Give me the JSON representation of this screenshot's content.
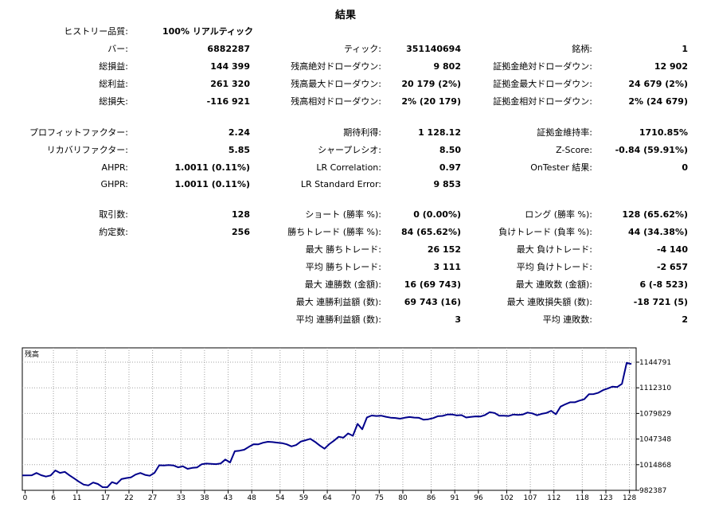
{
  "title": "結果",
  "history_quality": {
    "label": "ヒストリー品質:",
    "value": "100% リアルティック"
  },
  "rows": [
    {
      "y": 55,
      "c1": [
        "バー:",
        "6882287"
      ],
      "c2": [
        "ティック:",
        "351140694"
      ],
      "c3": [
        "銘柄:",
        "1"
      ]
    },
    {
      "y": 77,
      "c1": [
        "総損益:",
        "144 399"
      ],
      "c2": [
        "残高絶対ドローダウン:",
        "9 802"
      ],
      "c3": [
        "証拠金絶対ドローダウン:",
        "12 902"
      ]
    },
    {
      "y": 99,
      "c1": [
        "総利益:",
        "261 320"
      ],
      "c2": [
        "残高最大ドローダウン:",
        "20 179 (2%)"
      ],
      "c3": [
        "証拠金最大ドローダウン:",
        "24 679 (2%)"
      ]
    },
    {
      "y": 121,
      "c1": [
        "総損失:",
        "-116 921"
      ],
      "c2": [
        "残高相対ドローダウン:",
        "2% (20 179)"
      ],
      "c3": [
        "証拠金相対ドローダウン:",
        "2% (24 679)"
      ]
    },
    {
      "y": 160,
      "c1": [
        "プロフィットファクター:",
        "2.24"
      ],
      "c2": [
        "期待利得:",
        "1 128.12"
      ],
      "c3": [
        "証拠金維持率:",
        "1710.85%"
      ]
    },
    {
      "y": 182,
      "c1": [
        "リカバリファクター:",
        "5.85"
      ],
      "c2": [
        "シャープレシオ:",
        "8.50"
      ],
      "c3": [
        "Z-Score:",
        "-0.84 (59.91%)"
      ]
    },
    {
      "y": 204,
      "c1": [
        "AHPR:",
        "1.0011 (0.11%)"
      ],
      "c2": [
        "LR Correlation:",
        "0.97"
      ],
      "c3": [
        "OnTester 結果:",
        "0"
      ]
    },
    {
      "y": 225,
      "c1": [
        "GHPR:",
        "1.0011 (0.11%)"
      ],
      "c2": [
        "LR Standard Error:",
        "9 853"
      ],
      "c3": null
    },
    {
      "y": 263,
      "c1": [
        "取引数:",
        "128"
      ],
      "c2": [
        "ショート (勝率 %):",
        "0 (0.00%)"
      ],
      "c3": [
        "ロング (勝率 %):",
        "128 (65.62%)"
      ]
    },
    {
      "y": 285,
      "c1": [
        "約定数:",
        "256"
      ],
      "c2": [
        "勝ちトレード (勝率 %):",
        "84 (65.62%)"
      ],
      "c3": [
        "負けトレード (負率 %):",
        "44 (34.38%)"
      ]
    },
    {
      "y": 307,
      "c1": null,
      "c2": [
        "最大 勝ちトレード:",
        "26 152"
      ],
      "c3": [
        "最大 負けトレード:",
        "-4 140"
      ]
    },
    {
      "y": 329,
      "c1": null,
      "c2": [
        "平均 勝ちトレード:",
        "3 111"
      ],
      "c3": [
        "平均 負けトレード:",
        "-2 657"
      ]
    },
    {
      "y": 351,
      "c1": null,
      "c2": [
        "最大 連勝数 (金額):",
        "16 (69 743)"
      ],
      "c3": [
        "最大 連敗数 (金額):",
        "6 (-8 523)"
      ]
    },
    {
      "y": 373,
      "c1": null,
      "c2": [
        "最大 連勝利益額 (数):",
        "69 743 (16)"
      ],
      "c3": [
        "最大 連敗損失額 (数):",
        "-18 721 (5)"
      ]
    },
    {
      "y": 395,
      "c1": null,
      "c2": [
        "平均 連勝利益額 (数):",
        "3"
      ],
      "c3": [
        "平均 連敗数:",
        "2"
      ]
    }
  ],
  "chart_data": {
    "type": "line",
    "title": "残高",
    "x_ticks": [
      0,
      6,
      11,
      17,
      22,
      27,
      33,
      38,
      43,
      48,
      54,
      59,
      64,
      70,
      75,
      80,
      86,
      91,
      96,
      102,
      107,
      112,
      118,
      123,
      128
    ],
    "y_ticks": [
      982387,
      1014868,
      1047348,
      1079829,
      1112310,
      1144791
    ],
    "ylim": [
      982387,
      1144791
    ],
    "xlim": [
      0,
      130
    ],
    "grid": true,
    "line_color": "#00008b",
    "series": [
      {
        "x": [
          0,
          2,
          3,
          4,
          5,
          6,
          7,
          8,
          9,
          10,
          11,
          12,
          13,
          14,
          15,
          16,
          17,
          18,
          19,
          20,
          21,
          22,
          23,
          24,
          25,
          26,
          27,
          28,
          29,
          30,
          31,
          32,
          33,
          34,
          35,
          36,
          37,
          38,
          39,
          40,
          41,
          42,
          43,
          44,
          45,
          46,
          47,
          48,
          49,
          50,
          51,
          52,
          53,
          54,
          55,
          56,
          57,
          58,
          59,
          60,
          61,
          62,
          63,
          64,
          65,
          66,
          67,
          68,
          69,
          70,
          71,
          72,
          73,
          74,
          75,
          76,
          77,
          78,
          79,
          80,
          81,
          82,
          83,
          84,
          85,
          86,
          87,
          88,
          89,
          90,
          91,
          92,
          93,
          94,
          95,
          96,
          97,
          98,
          99,
          100,
          101,
          102,
          103,
          104,
          105,
          106,
          107,
          108,
          109,
          110,
          111,
          112,
          113,
          114,
          115,
          116,
          117,
          118,
          119,
          120,
          121,
          122,
          123,
          124,
          125,
          126,
          127,
          128,
          129
        ],
        "y": [
          1001300,
          1001500,
          1004400,
          1001600,
          999800,
          1001200,
          1007600,
          1004500,
          1005800,
          1001400,
          997400,
          993300,
          989700,
          988600,
          992300,
          990500,
          986400,
          986300,
          992800,
          990700,
          996600,
          997900,
          998700,
          1002400,
          1004400,
          1002000,
          1000800,
          1004600,
          1014200,
          1014000,
          1014500,
          1014000,
          1011500,
          1012800,
          1009600,
          1010800,
          1011300,
          1015500,
          1016300,
          1016000,
          1015600,
          1016400,
          1021400,
          1017700,
          1031900,
          1032600,
          1033800,
          1037600,
          1040800,
          1040700,
          1042700,
          1043900,
          1043500,
          1042800,
          1042200,
          1040700,
          1038100,
          1039800,
          1044200,
          1045800,
          1047700,
          1043800,
          1039200,
          1035100,
          1040900,
          1045200,
          1050300,
          1049100,
          1054500,
          1051500,
          1066600,
          1059800,
          1074800,
          1077200,
          1076600,
          1077000,
          1075600,
          1074500,
          1074100,
          1073200,
          1074400,
          1075300,
          1074600,
          1074300,
          1071900,
          1072500,
          1073900,
          1076300,
          1076700,
          1078400,
          1078600,
          1077300,
          1077700,
          1074700,
          1075500,
          1076100,
          1075900,
          1077800,
          1081400,
          1080400,
          1077000,
          1076900,
          1076600,
          1078400,
          1077900,
          1078500,
          1080900,
          1079900,
          1077500,
          1079300,
          1080400,
          1083200,
          1078800,
          1088500,
          1091400,
          1094000,
          1094000,
          1096100,
          1097800,
          1104100,
          1104300,
          1106100,
          1109400,
          1111400,
          1113800,
          1113300,
          1117400,
          1143900,
          1142500
        ]
      }
    ]
  }
}
